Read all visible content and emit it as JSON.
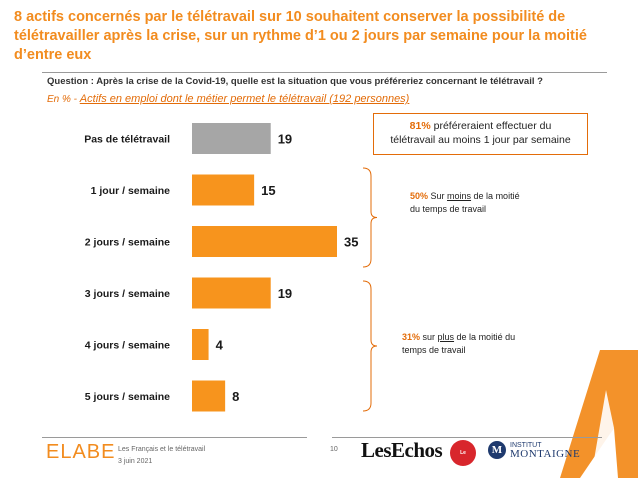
{
  "headline": "8  actifs concernés par le télétravail sur 10 souhaitent conserver la possibilité de télétravailler après la crise, sur un rythme d’1 ou 2 jours par semaine pour la moitié d’entre eux",
  "question": "Question : Après la crise de la Covid-19, quelle est la situation que vous préféreriez concernant le télétravail ?",
  "basis": {
    "prefix": "En % - ",
    "population": "Actifs en emploi dont le métier permet le télétravail (192 personnes)"
  },
  "callout": {
    "pct": "81%",
    "text_a": " préféreraient effectuer du",
    "text_b": "télétravail au moins 1 jour par semaine"
  },
  "note_upper": {
    "pct": "50%",
    "text_a": " Sur ",
    "emph": "moins",
    "text_b": " de la moitié",
    "text_c": "du temps de travail"
  },
  "note_lower": {
    "pct": "31%",
    "text_a": " sur ",
    "emph": "plus",
    "text_b": " de la moitié du",
    "text_c": "temps de travail"
  },
  "chart_data": {
    "type": "bar",
    "orientation": "horizontal",
    "categories": [
      "Pas de télétravail",
      "1 jour / semaine",
      "2 jours / semaine",
      "3 jours / semaine",
      "4 jours / semaine",
      "5 jours / semaine"
    ],
    "values": [
      19,
      15,
      35,
      19,
      4,
      8
    ],
    "value_labels": [
      "19",
      "15",
      "35",
      "19",
      "4",
      "8"
    ],
    "bar_colors": [
      "#a6a6a6",
      "#f7941d",
      "#f7941d",
      "#f7941d",
      "#f7941d",
      "#f7941d"
    ],
    "xlim": [
      0,
      35
    ],
    "grid": false,
    "title": "",
    "xlabel": "",
    "ylabel": ""
  },
  "footer": {
    "brand": "ELABE",
    "study": "Les Français et le télétravail",
    "date": "3 juin 2021",
    "page": "10",
    "partner1": "LesEchos",
    "partner2": "Le Parisien",
    "partner3_mark": "M",
    "partner3_line1": "INSTITUT",
    "partner3_line2": "MONTAIGNE"
  },
  "colors": {
    "accent": "#f28c1f",
    "bar_orange": "#f7941d",
    "bar_grey": "#a6a6a6",
    "text_orange": "#e36c09"
  }
}
